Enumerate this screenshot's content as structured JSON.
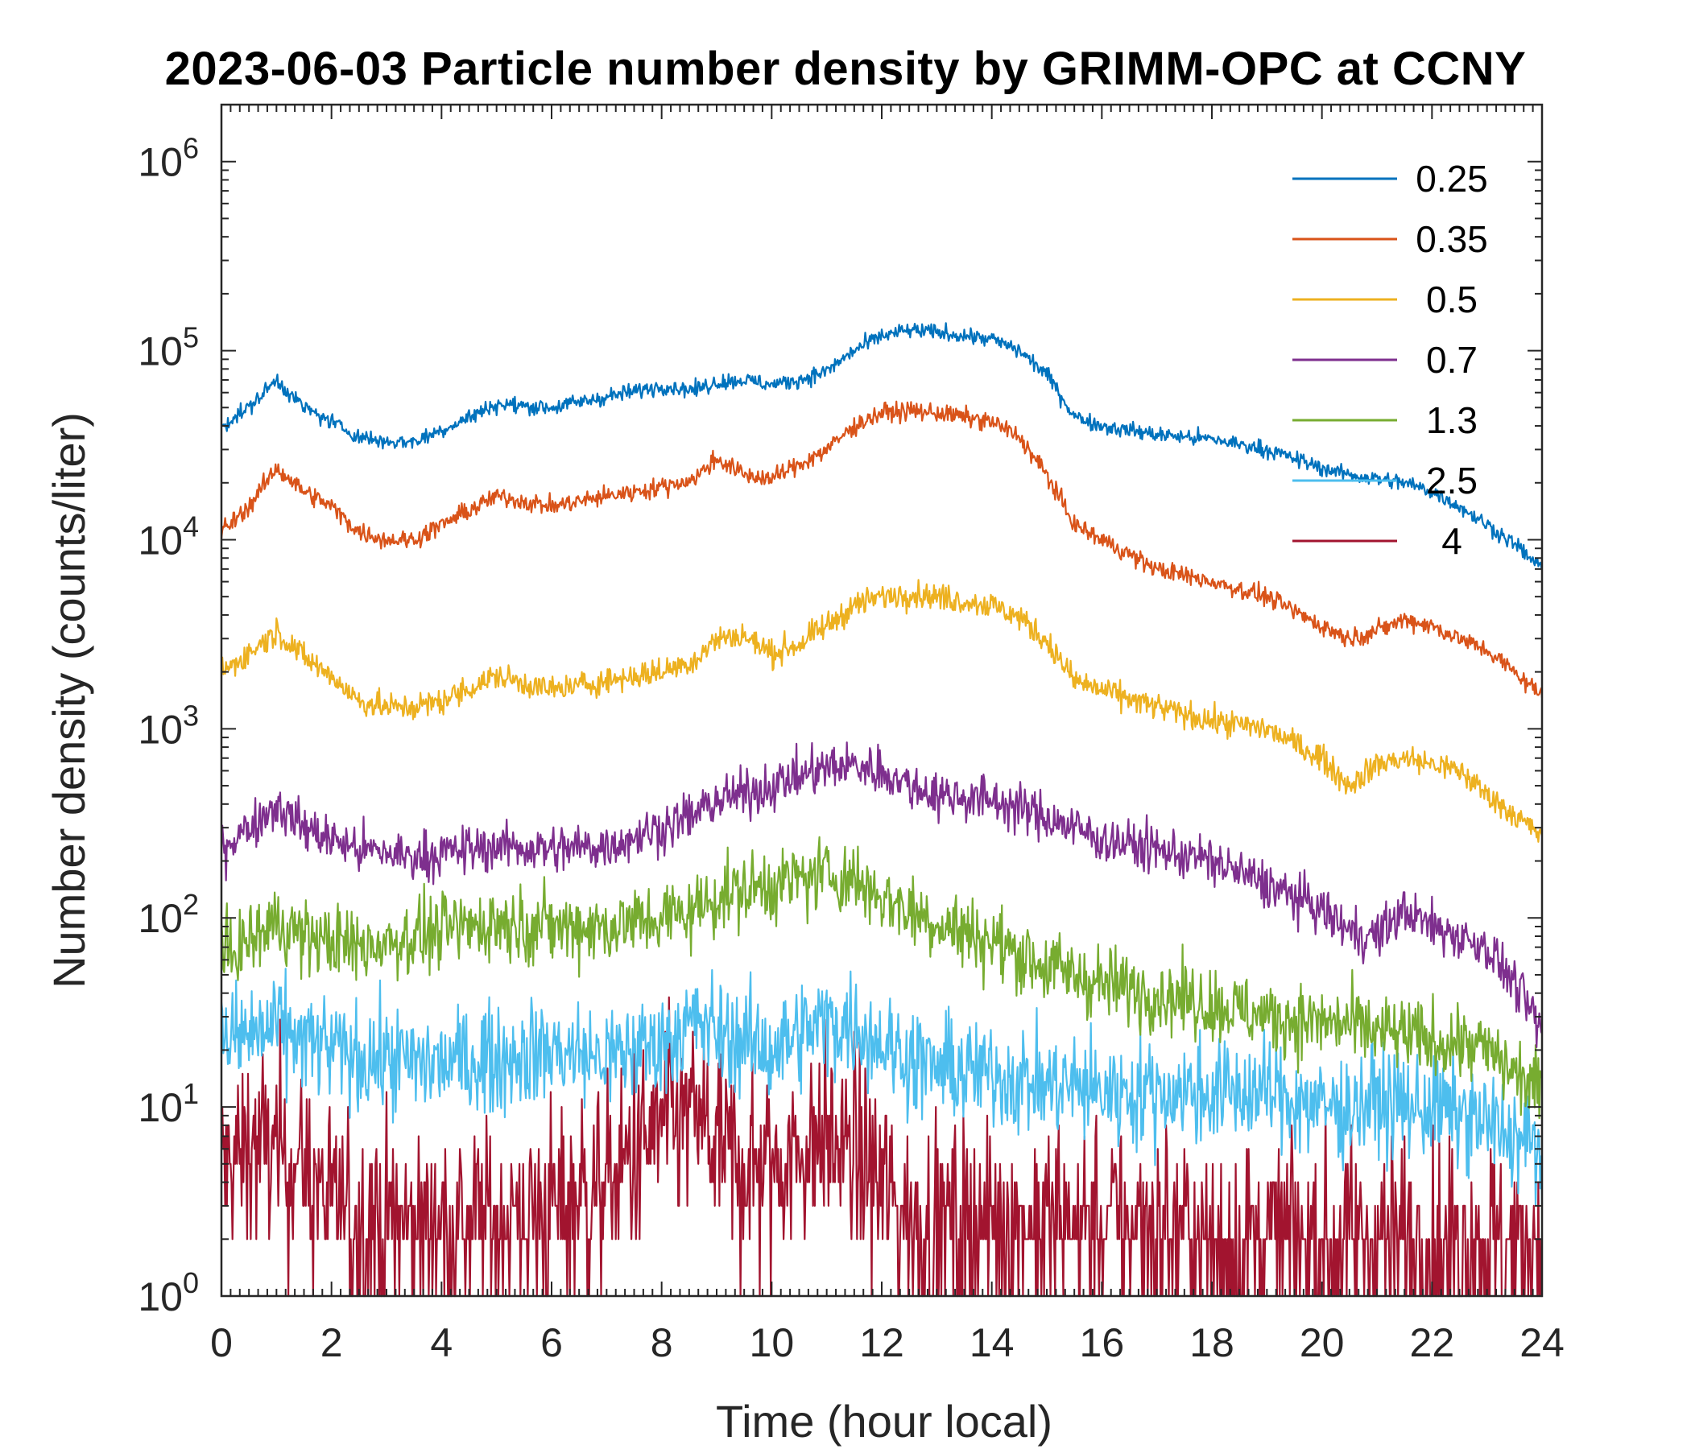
{
  "chart_data": {
    "type": "line",
    "title": "2023-06-03 Particle number density by GRIMM-OPC at CCNY",
    "xlabel": "Time (hour local)",
    "ylabel": "Number density (counts/liter)",
    "xlim": [
      0,
      24
    ],
    "ylim": [
      1,
      2000000
    ],
    "yscale": "log",
    "xticks": [
      "0",
      "2",
      "4",
      "6",
      "8",
      "10",
      "12",
      "14",
      "16",
      "18",
      "20",
      "22",
      "24"
    ],
    "yticks": [
      {
        "base": "10",
        "exp": "0"
      },
      {
        "base": "10",
        "exp": "1"
      },
      {
        "base": "10",
        "exp": "2"
      },
      {
        "base": "10",
        "exp": "3"
      },
      {
        "base": "10",
        "exp": "4"
      },
      {
        "base": "10",
        "exp": "5"
      },
      {
        "base": "10",
        "exp": "6"
      }
    ],
    "legend_position": "top-right",
    "x": [
      0,
      0.5,
      1,
      1.5,
      2,
      2.5,
      3,
      3.5,
      4,
      5,
      6,
      7,
      8,
      8.6,
      9,
      9.5,
      10,
      10.5,
      11,
      11.5,
      12,
      12.5,
      13,
      14,
      14.5,
      15,
      15.5,
      16,
      17,
      18,
      19,
      20,
      20.5,
      21,
      21.5,
      22,
      22.5,
      23,
      23.5,
      24
    ],
    "series": [
      {
        "name": "0.25",
        "color": "#0072BD",
        "noise": 0.03,
        "values": [
          40000,
          50000,
          70000,
          50000,
          42000,
          35000,
          33000,
          33000,
          38000,
          52000,
          50000,
          57000,
          65000,
          62000,
          68000,
          70000,
          66000,
          70000,
          78000,
          100000,
          120000,
          128000,
          125000,
          115000,
          100000,
          75000,
          45000,
          40000,
          36000,
          34000,
          30000,
          24000,
          22000,
          21000,
          20000,
          18000,
          15000,
          12000,
          9500,
          7000
        ]
      },
      {
        "name": "0.35",
        "color": "#D95319",
        "noise": 0.035,
        "values": [
          11000,
          15000,
          24000,
          18000,
          15000,
          11000,
          10000,
          10000,
          12000,
          17000,
          15000,
          17000,
          19000,
          21000,
          27000,
          22000,
          21000,
          25000,
          30000,
          40000,
          47000,
          48000,
          47000,
          42000,
          35000,
          22000,
          12000,
          10000,
          7000,
          6000,
          5000,
          3500,
          3000,
          3300,
          3800,
          3500,
          3000,
          2600,
          2000,
          1500
        ]
      },
      {
        "name": "0.5",
        "color": "#EDB120",
        "noise": 0.05,
        "values": [
          2000,
          2500,
          3300,
          2400,
          1900,
          1400,
          1300,
          1300,
          1400,
          1900,
          1600,
          1800,
          2000,
          2300,
          3000,
          3100,
          2500,
          2800,
          3500,
          4500,
          5000,
          5200,
          5000,
          4500,
          3900,
          2900,
          1800,
          1600,
          1300,
          1100,
          1000,
          700,
          500,
          650,
          700,
          650,
          600,
          450,
          350,
          270
        ]
      },
      {
        "name": "0.7",
        "color": "#7E2F8E",
        "noise": 0.09,
        "values": [
          240,
          300,
          400,
          300,
          260,
          230,
          220,
          210,
          220,
          240,
          230,
          240,
          300,
          350,
          420,
          450,
          500,
          560,
          620,
          640,
          600,
          500,
          450,
          420,
          380,
          340,
          300,
          260,
          230,
          200,
          150,
          110,
          85,
          80,
          110,
          90,
          80,
          70,
          45,
          25
        ]
      },
      {
        "name": "1.3",
        "color": "#77AC30",
        "noise": 0.14,
        "values": [
          60,
          75,
          95,
          80,
          75,
          70,
          75,
          80,
          85,
          95,
          90,
          90,
          100,
          110,
          130,
          140,
          150,
          160,
          170,
          160,
          130,
          110,
          95,
          75,
          65,
          55,
          50,
          45,
          40,
          35,
          30,
          28,
          27,
          25,
          24,
          22,
          22,
          20,
          15,
          12
        ]
      },
      {
        "name": "2.5",
        "color": "#4DBEEE",
        "noise": 0.2,
        "values": [
          22,
          24,
          26,
          22,
          20,
          18,
          18,
          17,
          17,
          18,
          20,
          18,
          22,
          28,
          25,
          22,
          20,
          24,
          28,
          27,
          22,
          18,
          16,
          15,
          14,
          13,
          13,
          12,
          12,
          12,
          12,
          10,
          10,
          11,
          10,
          10,
          9,
          8,
          7,
          6
        ]
      },
      {
        "name": "4",
        "color": "#A2142F",
        "noise": 0.35,
        "values": [
          5,
          6,
          6,
          5,
          3,
          2.5,
          2.5,
          2.5,
          2.5,
          2.5,
          3,
          4,
          8,
          9,
          6,
          5,
          5,
          6,
          7,
          6,
          4,
          2.5,
          2.5,
          2.5,
          2.5,
          2.5,
          2.5,
          2.5,
          2.5,
          2,
          2,
          2,
          2,
          2,
          2,
          2,
          2,
          2,
          2,
          2
        ]
      }
    ]
  }
}
